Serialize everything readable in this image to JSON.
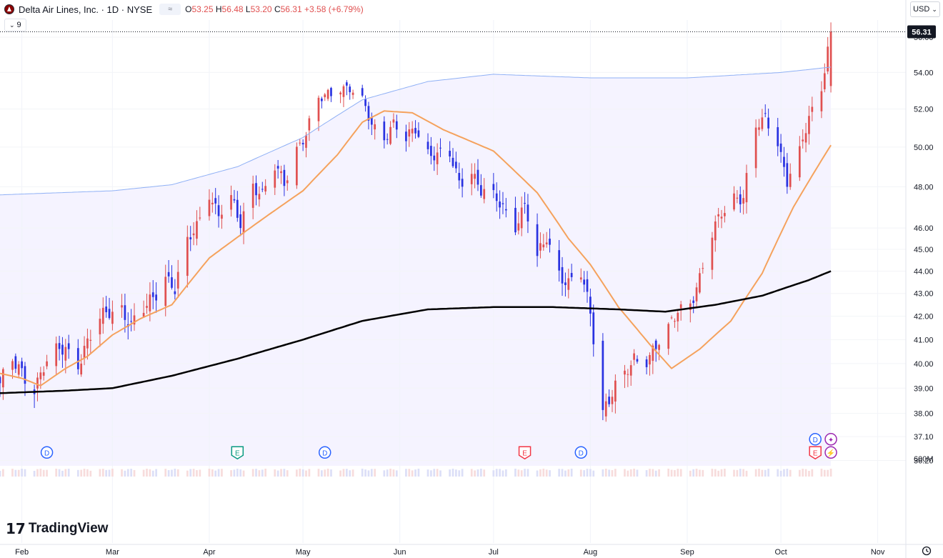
{
  "header": {
    "symbol_title": "Delta Air Lines, Inc. · 1D · NYSE",
    "compare_label": "≈",
    "ohlc": {
      "o_label": "O",
      "o": "53.25",
      "h_label": "H",
      "h": "56.48",
      "l_label": "L",
      "l": "53.20",
      "c_label": "C",
      "c": "56.31",
      "change": "+3.58 (+6.79%)"
    },
    "indicators_count": "9",
    "currency": "USD"
  },
  "branding": {
    "logo_mark": "17",
    "logo_text": "TradingView"
  },
  "colors": {
    "up": "#e05050",
    "down": "#2932e1",
    "ema_fast": "#f5a25d",
    "ma_slow": "#000000",
    "band": "#8fb0f5",
    "band_fill": "#f5f3ff",
    "volume": "#e8e3ee"
  },
  "icons": {
    "goto": "go-to-realtime-icon",
    "currency_chevron": "chevron-down-icon",
    "indicators_chevron": "chevron-down-icon",
    "symbol_logo": "delta-logo-icon"
  },
  "chart_data": {
    "type": "candlestick",
    "symbol": "DAL",
    "interval": "1D",
    "exchange": "NYSE",
    "last_price": 56.31,
    "last_price_label": "56.31",
    "y_axis": {
      "scale": "log",
      "range": [
        36.0,
        57.0
      ],
      "tick_labels": [
        "56.00",
        "54.00",
        "52.00",
        "50.00",
        "48.00",
        "46.00",
        "45.00",
        "44.00",
        "43.00",
        "42.00",
        "41.00",
        "40.00",
        "39.00",
        "38.00",
        "37.10",
        "36.20"
      ],
      "ticks": [
        56.0,
        54.0,
        52.0,
        50.0,
        48.0,
        46.0,
        45.0,
        44.0,
        43.0,
        42.0,
        41.0,
        40.0,
        39.0,
        38.0,
        37.1,
        36.2
      ],
      "volume_label": "600M"
    },
    "x_axis": {
      "range": [
        "2024-01-25",
        "2024-11-10"
      ],
      "ticks": [
        {
          "date": "2024-02-01",
          "label": "Feb"
        },
        {
          "date": "2024-03-01",
          "label": "Mar"
        },
        {
          "date": "2024-04-01",
          "label": "Apr"
        },
        {
          "date": "2024-05-01",
          "label": "May"
        },
        {
          "date": "2024-06-01",
          "label": "Jun"
        },
        {
          "date": "2024-07-01",
          "label": "Jul"
        },
        {
          "date": "2024-08-01",
          "label": "Aug"
        },
        {
          "date": "2024-09-01",
          "label": "Sep"
        },
        {
          "date": "2024-10-01",
          "label": "Oct"
        },
        {
          "date": "2024-11-01",
          "label": "Nov"
        }
      ]
    },
    "closes": [
      {
        "date": "2024-01-25",
        "c": 39.2
      },
      {
        "date": "2024-01-29",
        "c": 40.0
      },
      {
        "date": "2024-02-01",
        "c": 39.6
      },
      {
        "date": "2024-02-05",
        "c": 39.1
      },
      {
        "date": "2024-02-08",
        "c": 39.9
      },
      {
        "date": "2024-02-12",
        "c": 40.4
      },
      {
        "date": "2024-02-15",
        "c": 40.6
      },
      {
        "date": "2024-02-19",
        "c": 40.1
      },
      {
        "date": "2024-02-22",
        "c": 40.9
      },
      {
        "date": "2024-02-26",
        "c": 41.8
      },
      {
        "date": "2024-02-29",
        "c": 42.2
      },
      {
        "date": "2024-03-04",
        "c": 42.4
      },
      {
        "date": "2024-03-07",
        "c": 41.6
      },
      {
        "date": "2024-03-11",
        "c": 42.2
      },
      {
        "date": "2024-03-14",
        "c": 42.8
      },
      {
        "date": "2024-03-18",
        "c": 43.9
      },
      {
        "date": "2024-03-21",
        "c": 43.2
      },
      {
        "date": "2024-03-25",
        "c": 45.2
      },
      {
        "date": "2024-03-28",
        "c": 46.1
      },
      {
        "date": "2024-04-01",
        "c": 47.8
      },
      {
        "date": "2024-04-04",
        "c": 46.6
      },
      {
        "date": "2024-04-08",
        "c": 47.3
      },
      {
        "date": "2024-04-11",
        "c": 46.2
      },
      {
        "date": "2024-04-15",
        "c": 48.2
      },
      {
        "date": "2024-04-18",
        "c": 47.6
      },
      {
        "date": "2024-04-22",
        "c": 48.9
      },
      {
        "date": "2024-04-25",
        "c": 48.2
      },
      {
        "date": "2024-04-29",
        "c": 50.0
      },
      {
        "date": "2024-05-02",
        "c": 50.7
      },
      {
        "date": "2024-05-06",
        "c": 52.4
      },
      {
        "date": "2024-05-09",
        "c": 52.8
      },
      {
        "date": "2024-05-13",
        "c": 53.3
      },
      {
        "date": "2024-05-16",
        "c": 53.1
      },
      {
        "date": "2024-05-20",
        "c": 52.3
      },
      {
        "date": "2024-05-23",
        "c": 51.2
      },
      {
        "date": "2024-05-27",
        "c": 50.6
      },
      {
        "date": "2024-05-30",
        "c": 51.2
      },
      {
        "date": "2024-06-03",
        "c": 50.3
      },
      {
        "date": "2024-06-06",
        "c": 51.0
      },
      {
        "date": "2024-06-10",
        "c": 49.8
      },
      {
        "date": "2024-06-13",
        "c": 49.6
      },
      {
        "date": "2024-06-17",
        "c": 49.5
      },
      {
        "date": "2024-06-20",
        "c": 48.2
      },
      {
        "date": "2024-06-24",
        "c": 48.9
      },
      {
        "date": "2024-06-27",
        "c": 47.8
      },
      {
        "date": "2024-07-01",
        "c": 47.4
      },
      {
        "date": "2024-07-04",
        "c": 47.0
      },
      {
        "date": "2024-07-08",
        "c": 46.2
      },
      {
        "date": "2024-07-11",
        "c": 47.1
      },
      {
        "date": "2024-07-15",
        "c": 44.5
      },
      {
        "date": "2024-07-18",
        "c": 45.6
      },
      {
        "date": "2024-07-22",
        "c": 44.0
      },
      {
        "date": "2024-07-25",
        "c": 43.4
      },
      {
        "date": "2024-07-29",
        "c": 43.8
      },
      {
        "date": "2024-08-01",
        "c": 42.2
      },
      {
        "date": "2024-08-05",
        "c": 38.2
      },
      {
        "date": "2024-08-08",
        "c": 38.8
      },
      {
        "date": "2024-08-12",
        "c": 39.4
      },
      {
        "date": "2024-08-15",
        "c": 40.2
      },
      {
        "date": "2024-08-19",
        "c": 40.3
      },
      {
        "date": "2024-08-22",
        "c": 40.7
      },
      {
        "date": "2024-08-26",
        "c": 41.3
      },
      {
        "date": "2024-08-29",
        "c": 42.3
      },
      {
        "date": "2024-09-02",
        "c": 42.7
      },
      {
        "date": "2024-09-05",
        "c": 43.6
      },
      {
        "date": "2024-09-09",
        "c": 45.6
      },
      {
        "date": "2024-09-12",
        "c": 46.8
      },
      {
        "date": "2024-09-16",
        "c": 47.6
      },
      {
        "date": "2024-09-19",
        "c": 47.4
      },
      {
        "date": "2024-09-23",
        "c": 50.9
      },
      {
        "date": "2024-09-26",
        "c": 51.6
      },
      {
        "date": "2024-09-30",
        "c": 50.4
      },
      {
        "date": "2024-10-03",
        "c": 48.2
      },
      {
        "date": "2024-10-07",
        "c": 49.6
      },
      {
        "date": "2024-10-10",
        "c": 51.6
      },
      {
        "date": "2024-10-14",
        "c": 53.3
      },
      {
        "date": "2024-10-17",
        "c": 56.31
      }
    ],
    "series": [
      {
        "type": "line",
        "values": [
          {
            "date": "2024-01-25",
            "v": 39.6
          },
          {
            "date": "2024-02-01",
            "v": 39.4
          },
          {
            "date": "2024-02-07",
            "v": 39.1
          },
          {
            "date": "2024-02-15",
            "v": 39.8
          },
          {
            "date": "2024-02-22",
            "v": 40.3
          },
          {
            "date": "2024-03-01",
            "v": 41.2
          },
          {
            "date": "2024-03-10",
            "v": 41.9
          },
          {
            "date": "2024-03-20",
            "v": 42.5
          },
          {
            "date": "2024-04-01",
            "v": 44.6
          },
          {
            "date": "2024-04-15",
            "v": 46.1
          },
          {
            "date": "2024-05-01",
            "v": 47.8
          },
          {
            "date": "2024-05-12",
            "v": 49.6
          },
          {
            "date": "2024-05-20",
            "v": 51.3
          },
          {
            "date": "2024-05-27",
            "v": 51.9
          },
          {
            "date": "2024-06-05",
            "v": 51.8
          },
          {
            "date": "2024-06-15",
            "v": 50.9
          },
          {
            "date": "2024-07-01",
            "v": 49.8
          },
          {
            "date": "2024-07-15",
            "v": 47.7
          },
          {
            "date": "2024-07-25",
            "v": 45.5
          },
          {
            "date": "2024-08-01",
            "v": 44.3
          },
          {
            "date": "2024-08-10",
            "v": 42.4
          },
          {
            "date": "2024-08-20",
            "v": 40.8
          },
          {
            "date": "2024-08-27",
            "v": 39.8
          },
          {
            "date": "2024-09-05",
            "v": 40.6
          },
          {
            "date": "2024-09-15",
            "v": 41.8
          },
          {
            "date": "2024-09-25",
            "v": 43.9
          },
          {
            "date": "2024-10-05",
            "v": 47.0
          },
          {
            "date": "2024-10-17",
            "v": 50.1
          }
        ]
      },
      {
        "type": "line",
        "values": [
          {
            "date": "2024-01-25",
            "v": 38.8
          },
          {
            "date": "2024-02-15",
            "v": 38.9
          },
          {
            "date": "2024-03-01",
            "v": 39.0
          },
          {
            "date": "2024-03-20",
            "v": 39.5
          },
          {
            "date": "2024-04-10",
            "v": 40.2
          },
          {
            "date": "2024-05-01",
            "v": 41.0
          },
          {
            "date": "2024-05-20",
            "v": 41.8
          },
          {
            "date": "2024-06-10",
            "v": 42.3
          },
          {
            "date": "2024-07-01",
            "v": 42.4
          },
          {
            "date": "2024-07-20",
            "v": 42.4
          },
          {
            "date": "2024-08-10",
            "v": 42.3
          },
          {
            "date": "2024-08-25",
            "v": 42.2
          },
          {
            "date": "2024-09-10",
            "v": 42.5
          },
          {
            "date": "2024-09-25",
            "v": 42.9
          },
          {
            "date": "2024-10-10",
            "v": 43.6
          },
          {
            "date": "2024-10-17",
            "v": 44.0
          }
        ]
      },
      {
        "type": "line",
        "values": [
          {
            "date": "2024-01-25",
            "v": 47.6
          },
          {
            "date": "2024-03-01",
            "v": 47.8
          },
          {
            "date": "2024-03-20",
            "v": 48.1
          },
          {
            "date": "2024-04-10",
            "v": 49.0
          },
          {
            "date": "2024-05-01",
            "v": 50.5
          },
          {
            "date": "2024-05-20",
            "v": 52.5
          },
          {
            "date": "2024-06-10",
            "v": 53.5
          },
          {
            "date": "2024-07-01",
            "v": 53.9
          },
          {
            "date": "2024-08-01",
            "v": 53.7
          },
          {
            "date": "2024-09-01",
            "v": 53.7
          },
          {
            "date": "2024-10-01",
            "v": 54.0
          },
          {
            "date": "2024-10-17",
            "v": 54.3
          }
        ]
      }
    ],
    "event_markers": [
      {
        "date": "2024-02-09",
        "label": "D",
        "price": 36.5,
        "kind": "dividend"
      },
      {
        "date": "2024-04-10",
        "label": "E",
        "price": 36.5,
        "kind": "earnings"
      },
      {
        "date": "2024-05-08",
        "label": "D",
        "price": 36.5,
        "kind": "dividend"
      },
      {
        "date": "2024-07-11",
        "label": "E",
        "price": 36.5,
        "kind": "earnings"
      },
      {
        "date": "2024-07-29",
        "label": "D",
        "price": 36.5,
        "kind": "dividend"
      },
      {
        "date": "2024-10-12",
        "label": "D",
        "price": 37.0,
        "kind": "dividend"
      },
      {
        "date": "2024-10-12",
        "label": "E",
        "price": 36.5,
        "kind": "earnings"
      },
      {
        "date": "2024-10-17",
        "label": "✦",
        "price": 37.0,
        "kind": "news"
      },
      {
        "date": "2024-10-17",
        "label": "⚡",
        "price": 36.5,
        "kind": "news"
      }
    ]
  }
}
